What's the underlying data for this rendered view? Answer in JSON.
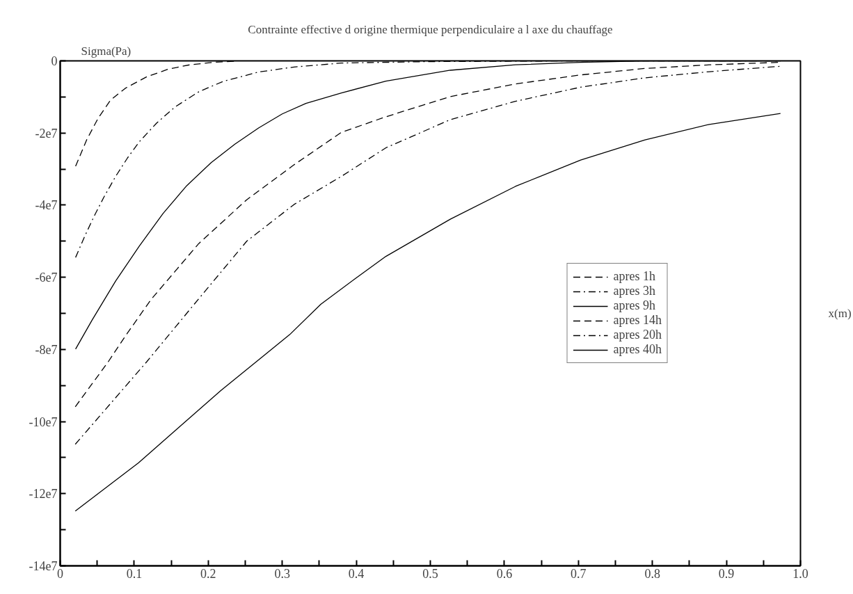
{
  "chart_data": {
    "type": "line",
    "title": "Contrainte effective d origine thermique perpendiculaire a l axe du chauffage",
    "xlabel": "x(m)",
    "ylabel": "Sigma(Pa)",
    "xlim": [
      0,
      1.0
    ],
    "ylim": [
      -140000000.0,
      0
    ],
    "xticks": [
      0,
      0.1,
      0.2,
      0.3,
      0.4,
      0.5,
      0.6,
      0.7,
      0.8,
      0.9,
      {
        "value": 1.0,
        "label": "1.0"
      },
      {
        "value": 0.05,
        "label": null
      },
      {
        "value": 0.15,
        "label": null
      },
      {
        "value": 0.25,
        "label": null
      },
      {
        "value": 0.35,
        "label": null
      },
      {
        "value": 0.45,
        "label": null
      },
      {
        "value": 0.55,
        "label": null
      },
      {
        "value": 0.65,
        "label": null
      },
      {
        "value": 0.75,
        "label": null
      },
      {
        "value": 0.85,
        "label": null
      },
      {
        "value": 0.95,
        "label": null
      }
    ],
    "yticks": [
      0,
      {
        "value": -20000000.0,
        "label": "-2e7"
      },
      {
        "value": -40000000.0,
        "label": "-4e7"
      },
      {
        "value": -60000000.0,
        "label": "-6e7"
      },
      {
        "value": -80000000.0,
        "label": "-8e7"
      },
      {
        "value": -100000000.0,
        "label": "-10e7"
      },
      {
        "value": -120000000.0,
        "label": "-12e7"
      },
      {
        "value": -140000000.0,
        "label": "-14e7"
      },
      {
        "value": -10000000.0,
        "label": null
      },
      {
        "value": -30000000.0,
        "label": null
      },
      {
        "value": -50000000.0,
        "label": null
      },
      {
        "value": -70000000.0,
        "label": null
      },
      {
        "value": -90000000.0,
        "label": null
      },
      {
        "value": -110000000.0,
        "label": null
      },
      {
        "value": -130000000.0,
        "label": null
      }
    ],
    "grid": false,
    "legend": "right",
    "series": [
      {
        "name": "apres 1h",
        "color": "#000000",
        "line_style": "dashed",
        "x": [
          0.0208,
          0.036,
          0.051,
          0.068,
          0.088,
          0.117,
          0.146,
          0.175,
          0.207,
          0.236
        ],
        "values": [
          -29200000.0,
          -21800000.0,
          -16000000.0,
          -10900000.0,
          -7600000.0,
          -4400000.0,
          -2300000.0,
          -1100000.0,
          -400000.0,
          -100000.0
        ]
      },
      {
        "name": "apres 3h",
        "color": "#000000",
        "line_style": "dashdot",
        "x": [
          0.0208,
          0.033,
          0.046,
          0.059,
          0.075,
          0.091,
          0.107,
          0.13,
          0.155,
          0.187,
          0.22,
          0.268,
          0.316,
          0.38,
          0.5,
          0.7,
          0.973
        ],
        "values": [
          -54500000.0,
          -48700000.0,
          -43000000.0,
          -37800000.0,
          -32000000.0,
          -26900000.0,
          -22400000.0,
          -17300000.0,
          -12800000.0,
          -8600000.0,
          -5700000.0,
          -3100000.0,
          -1700000.0,
          -600000.0,
          -200000.0,
          0,
          0
        ]
      },
      {
        "name": "apres 9h",
        "color": "#000000",
        "line_style": "solid",
        "x": [
          0.0208,
          0.043,
          0.075,
          0.107,
          0.139,
          0.171,
          0.204,
          0.236,
          0.268,
          0.3,
          0.332,
          0.38,
          0.44,
          0.527,
          0.615,
          0.703,
          0.79,
          0.973
        ],
        "values": [
          -79900000.0,
          -71900000.0,
          -61000000.0,
          -51300000.0,
          -42300000.0,
          -34600000.0,
          -28200000.0,
          -23100000.0,
          -18600000.0,
          -14700000.0,
          -11800000.0,
          -8900000.0,
          -5600000.0,
          -2600000.0,
          -1100000.0,
          -400000.0,
          0,
          0
        ]
      },
      {
        "name": "apres 14h",
        "color": "#000000",
        "line_style": "dashed",
        "x": [
          0.0204,
          0.065,
          0.089,
          0.123,
          0.187,
          0.252,
          0.316,
          0.38,
          0.44,
          0.527,
          0.615,
          0.703,
          0.79,
          0.877,
          0.973
        ],
        "values": [
          -95900000.0,
          -83400000.0,
          -76000000.0,
          -66100000.0,
          -50700000.0,
          -38500000.0,
          -28800000.0,
          -19800000.0,
          -15500000.0,
          -9900000.0,
          -6400000.0,
          -3900000.0,
          -2100000.0,
          -1100000.0,
          -400000.0
        ]
      },
      {
        "name": "apres 20h",
        "color": "#000000",
        "line_style": "dashdot",
        "x": [
          0.0204,
          0.117,
          0.187,
          0.252,
          0.316,
          0.38,
          0.44,
          0.527,
          0.615,
          0.703,
          0.79,
          0.877,
          0.973
        ],
        "values": [
          -106300000.0,
          -83400000.0,
          -66000000.0,
          -50000000.0,
          -39800000.0,
          -32000000.0,
          -24100000.0,
          -16300000.0,
          -11200000.0,
          -7300000.0,
          -4700000.0,
          -3000000.0,
          -1500000.0
        ]
      },
      {
        "name": "apres 40h",
        "color": "#000000",
        "line_style": "solid",
        "x": [
          0.0204,
          0.106,
          0.217,
          0.31,
          0.352,
          0.399,
          0.44,
          0.527,
          0.615,
          0.703,
          0.79,
          0.877,
          0.973
        ],
        "values": [
          -124800000.0,
          -111400000.0,
          -91400000.0,
          -75900000.0,
          -67500000.0,
          -60300000.0,
          -54200000.0,
          -43900000.0,
          -34800000.0,
          -27500000.0,
          -21900000.0,
          -17600000.0,
          -14600000.0
        ]
      }
    ]
  }
}
